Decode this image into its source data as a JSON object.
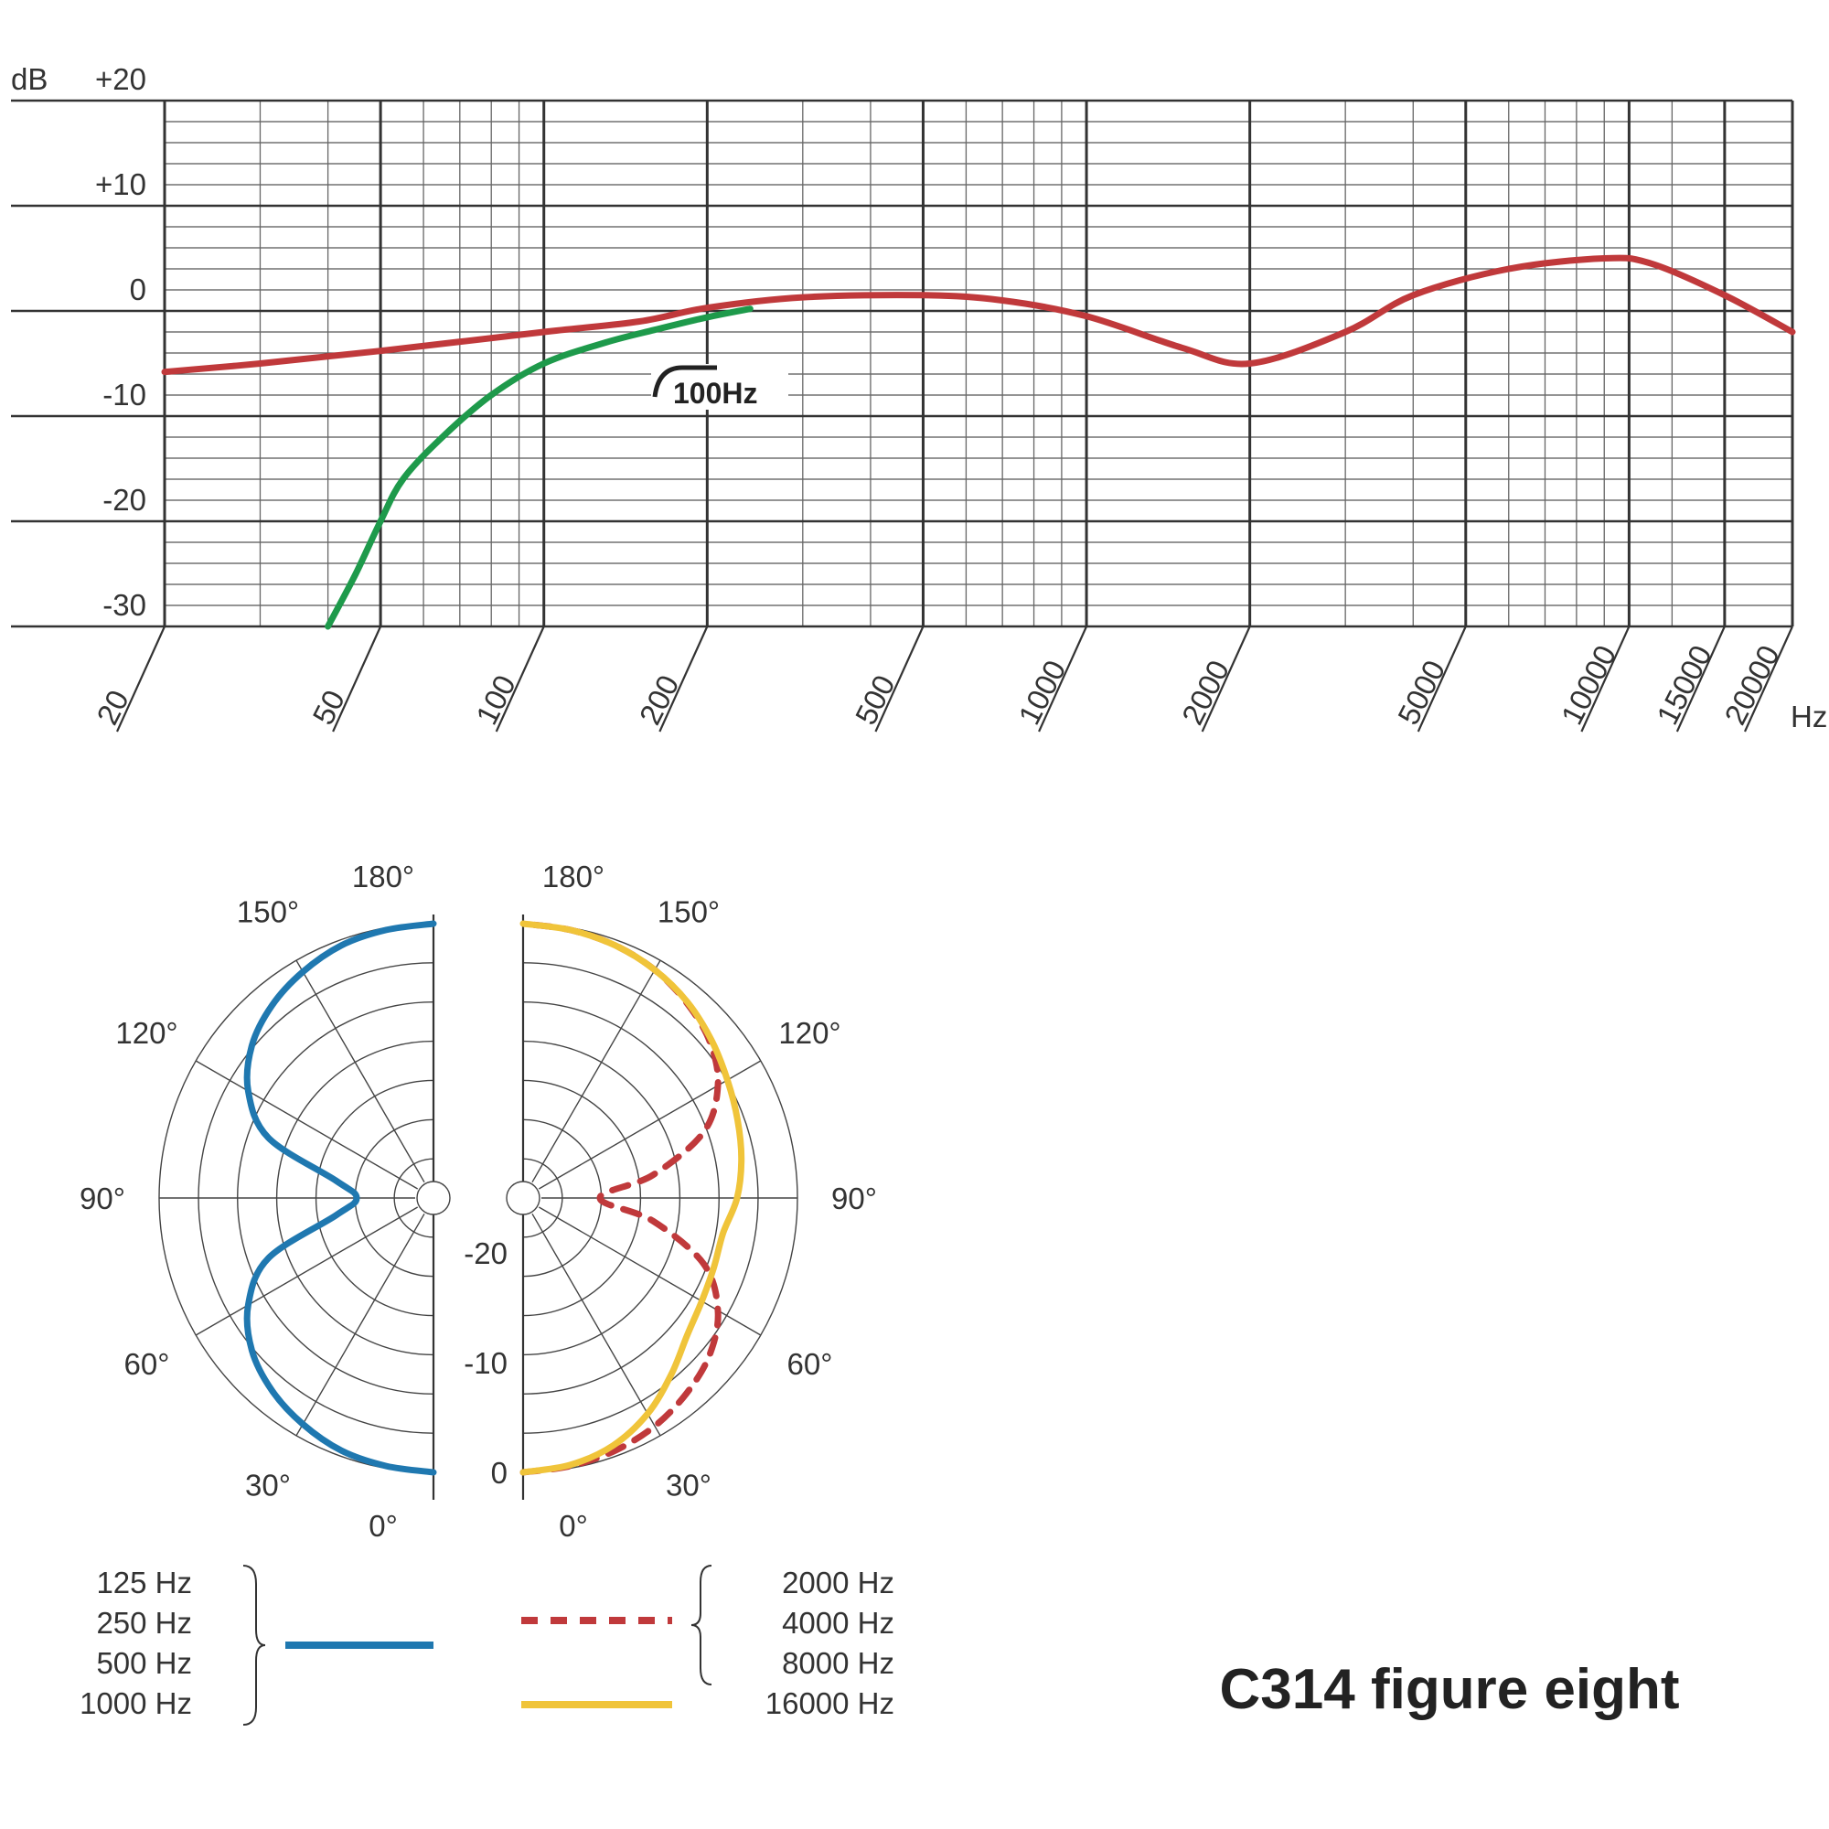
{
  "chart_data": [
    {
      "type": "line",
      "x_axis": {
        "scale": "log",
        "range": [
          20,
          20000
        ],
        "unit_label": "Hz",
        "tick_labels": [
          "20",
          "50",
          "100",
          "200",
          "500",
          "1000",
          "2000",
          "5000",
          "10000",
          "15000",
          "20000"
        ]
      },
      "y_axis": {
        "unit_label": "dB",
        "range": [
          -30,
          20
        ],
        "tick_labels": [
          "+20",
          "+10",
          "0",
          "-10",
          "-20",
          "-30"
        ]
      },
      "grid": true,
      "series": [
        {
          "color": "#c0393b",
          "points": [
            [
              20,
              -5.8
            ],
            [
              30,
              -5.0
            ],
            [
              50,
              -3.8
            ],
            [
              100,
              -2.0
            ],
            [
              150,
              -1.0
            ],
            [
              200,
              0.3
            ],
            [
              300,
              1.3
            ],
            [
              500,
              1.5
            ],
            [
              700,
              1.0
            ],
            [
              1000,
              -0.5
            ],
            [
              1500,
              -3.5
            ],
            [
              2000,
              -5.0
            ],
            [
              3000,
              -2.0
            ],
            [
              4000,
              1.5
            ],
            [
              6000,
              4.0
            ],
            [
              9000,
              5.0
            ],
            [
              11000,
              4.5
            ],
            [
              15000,
              1.5
            ],
            [
              20000,
              -2.0
            ]
          ]
        },
        {
          "color": "#1e9a4b",
          "points": [
            [
              40,
              -30
            ],
            [
              45,
              -25
            ],
            [
              50,
              -20
            ],
            [
              55,
              -16
            ],
            [
              65,
              -12
            ],
            [
              80,
              -8
            ],
            [
              100,
              -5
            ],
            [
              130,
              -3
            ],
            [
              160,
              -1.8
            ],
            [
              200,
              -0.6
            ],
            [
              240,
              0.2
            ]
          ]
        }
      ],
      "annotations": [
        {
          "text": "100Hz",
          "icon": "high-pass-filter-icon"
        }
      ]
    },
    {
      "type": "polar",
      "angle_labels_left": [
        "180°",
        "150°",
        "120°",
        "90°",
        "60°",
        "30°",
        "0°"
      ],
      "angle_labels_right": [
        "180°",
        "150°",
        "120°",
        "90°",
        "60°",
        "30°",
        "0°"
      ],
      "radial_labels": [
        "-20",
        "-10",
        "0"
      ],
      "radial_range_db": [
        -25,
        0
      ],
      "series": [
        {
          "color": "#1f78b0",
          "style": "solid",
          "side": "left",
          "angles_deg": [
            0,
            10,
            20,
            30,
            40,
            50,
            60,
            70,
            80,
            90,
            100,
            110,
            120,
            130,
            140,
            150,
            160,
            170,
            180
          ],
          "levels_db": [
            0,
            -0.2,
            -0.5,
            -1.2,
            -2.1,
            -3.4,
            -5.5,
            -9,
            -16,
            -18,
            -16,
            -9,
            -5.5,
            -3.4,
            -2.1,
            -1.2,
            -0.5,
            -0.2,
            0
          ]
        },
        {
          "color": "#c0393b",
          "style": "dashed",
          "side": "right",
          "angles_deg": [
            0,
            10,
            20,
            30,
            40,
            50,
            60,
            70,
            80,
            90,
            100,
            110,
            120,
            130,
            140,
            150,
            160,
            170,
            180
          ],
          "levels_db": [
            0,
            -0.2,
            -0.5,
            -1.0,
            -1.8,
            -2.8,
            -4.5,
            -7.5,
            -13,
            -18,
            -13,
            -7.5,
            -4.5,
            -2.8,
            -1.8,
            -1.0,
            -0.5,
            -0.2,
            0
          ]
        },
        {
          "color": "#f0c43a",
          "style": "solid",
          "side": "right",
          "angles_deg": [
            0,
            10,
            20,
            30,
            40,
            50,
            60,
            70,
            80,
            90,
            100,
            110,
            120,
            130,
            140,
            150,
            160,
            170,
            180
          ],
          "levels_db": [
            0,
            -0.3,
            -1.0,
            -2.3,
            -4.0,
            -5.5,
            -6.2,
            -6.5,
            -6.5,
            -5.5,
            -4.8,
            -4.2,
            -3.5,
            -2.6,
            -1.7,
            -1.0,
            -0.5,
            -0.2,
            0
          ]
        }
      ],
      "legend": {
        "groups": [
          {
            "labels": [
              "125 Hz",
              "250 Hz",
              "500 Hz",
              "1000 Hz"
            ],
            "color": "#1f78b0",
            "style": "solid",
            "bracket": "right"
          },
          {
            "labels": [
              "2000 Hz",
              "4000 Hz",
              "8000 Hz"
            ],
            "color": "#c0393b",
            "style": "dashed",
            "bracket": "left"
          },
          {
            "labels": [
              "16000 Hz"
            ],
            "color": "#f0c43a",
            "style": "solid",
            "bracket": "none"
          }
        ]
      }
    }
  ],
  "title": "C314 figure eight"
}
